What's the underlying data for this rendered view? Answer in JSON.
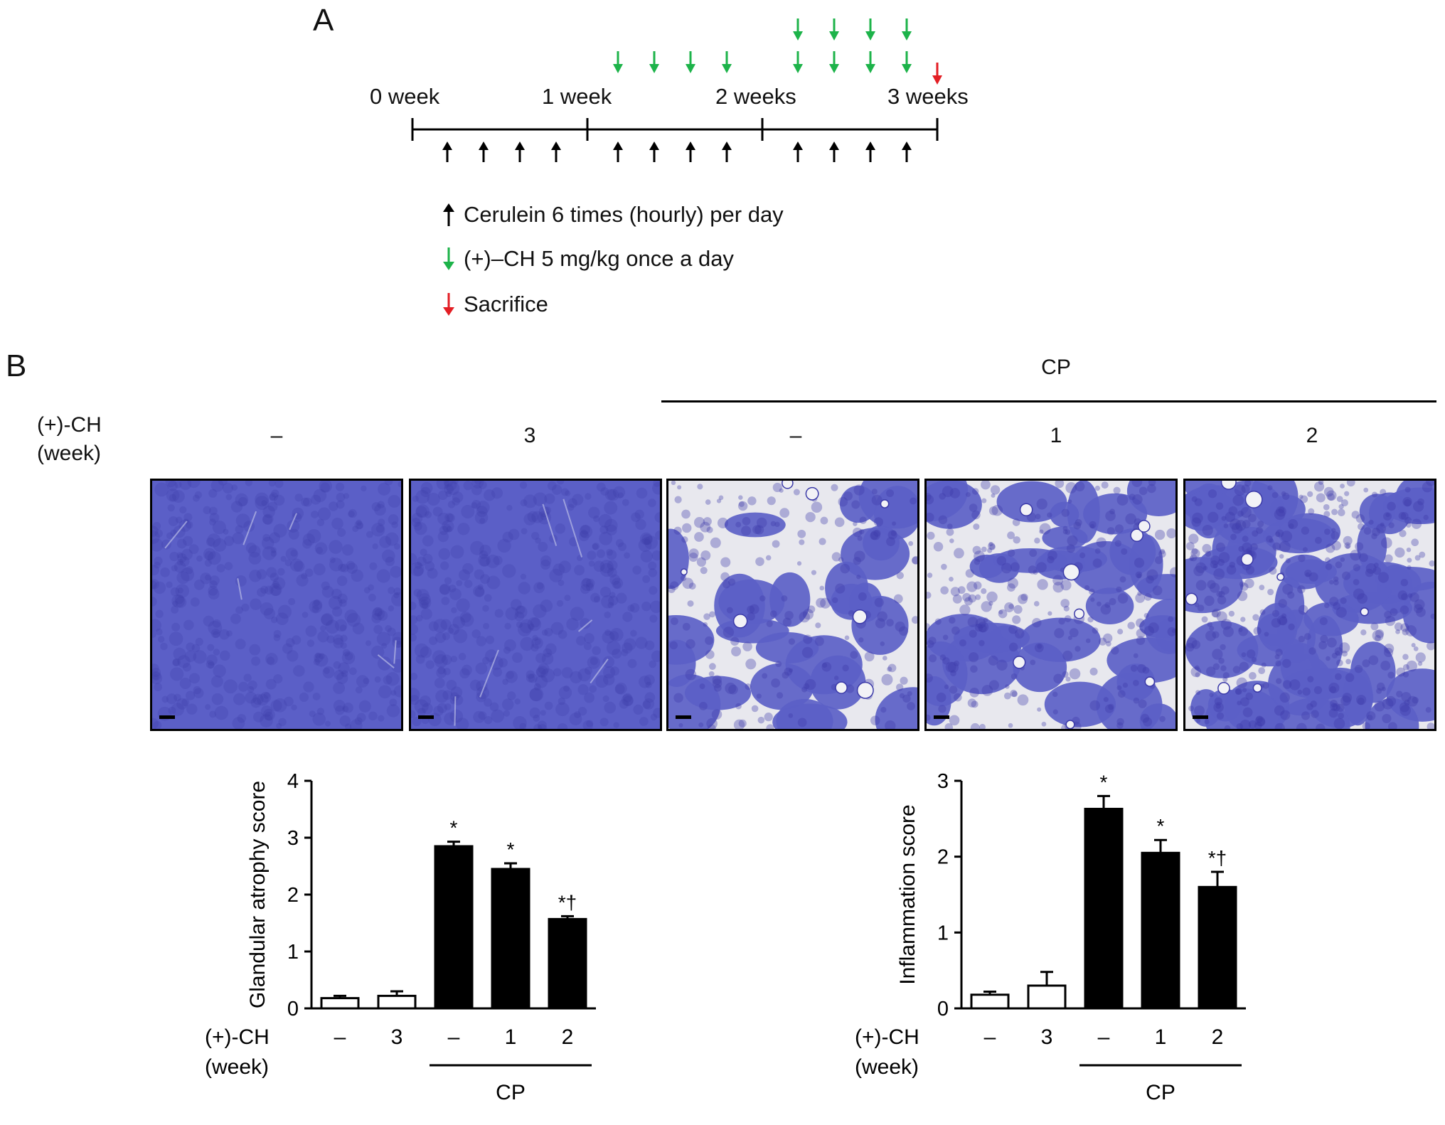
{
  "panel_a": {
    "letter": "A",
    "timeline_labels": [
      "0 week",
      "1 week",
      "2 weeks",
      "3 weeks"
    ],
    "legend": [
      {
        "icon": "black-up-arrow-icon",
        "color": "#000000",
        "text": "Cerulein 6 times (hourly) per day"
      },
      {
        "icon": "green-down-arrow-icon",
        "color": "#1db34a",
        "text": "(+)–CH 5 mg/kg once a day"
      },
      {
        "icon": "red-down-arrow-icon",
        "color": "#e31e24",
        "text": "Sacrifice"
      }
    ]
  },
  "panel_b": {
    "letter": "B",
    "group_header": "CP",
    "row_label_line1": "(+)-CH",
    "row_label_line2": "(week)",
    "columns": [
      "–",
      "3",
      "–",
      "1",
      "2"
    ],
    "micrograph_colors": {
      "tissue": "#5b5fc7",
      "stroma": "#e8e8ee",
      "dark": "#3b3aa8"
    }
  },
  "chart_data": [
    {
      "type": "bar",
      "ylabel": "Glandular atrophy score",
      "ylim": [
        0,
        4
      ],
      "yticks": [
        "0",
        "1",
        "2",
        "3",
        "4"
      ],
      "categories": [
        "–",
        "3",
        "–",
        "1",
        "2"
      ],
      "values": [
        0.18,
        0.22,
        2.85,
        2.45,
        1.57
      ],
      "errors": [
        0.04,
        0.08,
        0.08,
        0.1,
        0.05
      ],
      "fill": [
        "white",
        "white",
        "black",
        "black",
        "black"
      ],
      "annotations": [
        "",
        "",
        "*",
        "*",
        "*†"
      ],
      "xlabel_line1": "(+)-CH",
      "xlabel_line2": "(week)",
      "group_label": "CP"
    },
    {
      "type": "bar",
      "ylabel": "Inflammation score",
      "ylim": [
        0,
        3
      ],
      "yticks": [
        "0",
        "1",
        "2",
        "3"
      ],
      "categories": [
        "–",
        "3",
        "–",
        "1",
        "2"
      ],
      "values": [
        0.18,
        0.3,
        2.63,
        2.05,
        1.6
      ],
      "errors": [
        0.04,
        0.18,
        0.17,
        0.17,
        0.2
      ],
      "fill": [
        "white",
        "white",
        "black",
        "black",
        "black"
      ],
      "annotations": [
        "",
        "",
        "*",
        "*",
        "*†"
      ],
      "xlabel_line1": "(+)-CH",
      "xlabel_line2": "(week)",
      "group_label": "CP"
    }
  ]
}
